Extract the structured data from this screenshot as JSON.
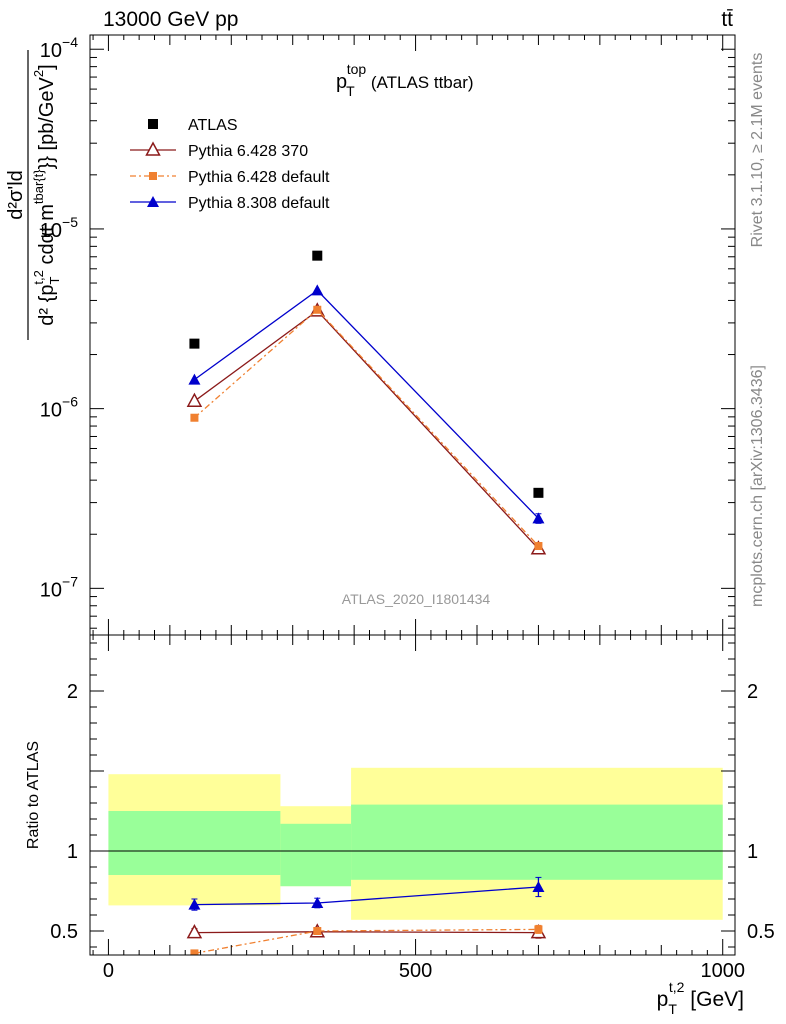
{
  "header": {
    "left": "13000 GeV pp",
    "right": "tt̄"
  },
  "side_labels": {
    "rivet": "Rivet 3.1.10, ≥ 2.1M events",
    "mcplots": "mcplots.cern.ch [arXiv:1306.3436]"
  },
  "chart_data": [
    {
      "type": "line",
      "panel": "main",
      "title_main": "p",
      "title_sup": "top",
      "title_sub": "T",
      "title_suffix": " (ATLAS ttbar)",
      "analysis_id": "ATLAS_2020_I1801434",
      "yscale": "log",
      "ylim": [
        5.5e-08,
        0.00012
      ],
      "ylabel_parts": {
        "num": "d²σ'ld",
        "den": "d² {p",
        "den_sub": "T",
        "den_sup": "t,2",
        "den_tail": " cdαt m",
        "den_tail_sup": "tbar{t}",
        "den_end": "}} [pb/GeV",
        "den_end_sup": "2",
        "den_close": "]"
      },
      "yticks": [
        {
          "value": 1e-07,
          "base": "10",
          "exp": "−7"
        },
        {
          "value": 1e-06,
          "base": "10",
          "exp": "−6"
        },
        {
          "value": 1e-05,
          "base": "10",
          "exp": "−5"
        },
        {
          "value": 0.0001,
          "base": "10",
          "exp": "−4"
        }
      ],
      "x": [
        140,
        340,
        700
      ],
      "series": [
        {
          "name": "ATLAS",
          "marker": "square",
          "color": "#000000",
          "line": "none",
          "values": [
            2.3e-06,
            7.1e-06,
            3.4e-07
          ],
          "errors": [
            0,
            0,
            0
          ]
        },
        {
          "name": "Pythia 6.428 370",
          "marker": "triangle-open",
          "color": "#8b1a1a",
          "line": "solid",
          "values": [
            1.1e-06,
            3.5e-06,
            1.66e-07
          ],
          "errors": [
            0,
            0,
            0
          ]
        },
        {
          "name": "Pythia 6.428 default",
          "marker": "square-small",
          "color": "#f08030",
          "line": "dashdot",
          "values": [
            8.9e-07,
            3.55e-06,
            1.72e-07
          ],
          "errors": [
            0,
            0,
            0
          ]
        },
        {
          "name": "Pythia 8.308 default",
          "marker": "triangle",
          "color": "#0000cc",
          "line": "solid",
          "values": [
            1.45e-06,
            4.55e-06,
            2.45e-07
          ],
          "errors": [
            0,
            0,
            1.5e-08
          ]
        }
      ]
    },
    {
      "type": "line",
      "panel": "ratio",
      "ylabel": "Ratio to ATLAS",
      "xlabel_main": "p",
      "xlabel_sub": "T",
      "xlabel_sup": "t,2",
      "xlabel_unit": " [GeV]",
      "xlim": [
        -30,
        1020
      ],
      "ylim": [
        0.35,
        2.35
      ],
      "xticks": [
        0,
        500,
        1000
      ],
      "yticks": [
        0.5,
        1,
        2
      ],
      "bins": [
        {
          "x0": 0,
          "x1": 280,
          "inner": [
            0.85,
            1.25
          ],
          "outer": [
            0.66,
            1.48
          ]
        },
        {
          "x0": 280,
          "x1": 395,
          "inner": [
            0.78,
            1.17
          ],
          "outer": [
            0.78,
            1.28
          ]
        },
        {
          "x0": 395,
          "x1": 1000,
          "inner": [
            0.82,
            1.29
          ],
          "outer": [
            0.57,
            1.52
          ]
        }
      ],
      "band_colors": {
        "inner": "#99ff99",
        "outer": "#ffff99"
      },
      "x": [
        140,
        340,
        700
      ],
      "series": [
        {
          "name": "Pythia 6.428 370",
          "color": "#8b1a1a",
          "marker": "triangle-open",
          "line": "solid",
          "values": [
            0.49,
            0.495,
            0.49
          ],
          "errors": [
            0.025,
            0.018,
            0.035
          ]
        },
        {
          "name": "Pythia 6.428 default",
          "color": "#f08030",
          "marker": "square-small",
          "line": "dashdot",
          "values": [
            0.36,
            0.5,
            0.51
          ],
          "errors": [
            0,
            0.015,
            0.025
          ]
        },
        {
          "name": "Pythia 8.308 default",
          "color": "#0000cc",
          "marker": "triangle",
          "line": "solid",
          "values": [
            0.665,
            0.675,
            0.775
          ],
          "errors": [
            0.035,
            0.03,
            0.06
          ]
        }
      ]
    }
  ]
}
